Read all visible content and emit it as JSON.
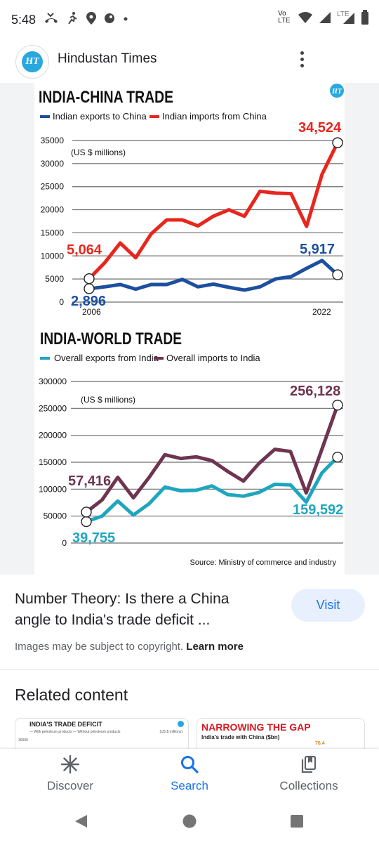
{
  "status_bar": {
    "time": "5:48",
    "left_icons": [
      "missed-call-icon",
      "activity-icon",
      "location-icon",
      "app-icon",
      "dot-icon"
    ],
    "right_icons": [
      "volte-icon",
      "wifi-icon",
      "signal-icon",
      "lte-signal-icon",
      "battery-icon"
    ],
    "volte_text": "Vo LTE",
    "lte_text": "LTE"
  },
  "app_bar": {
    "logo_text": "HT",
    "title": "Hindustan Times"
  },
  "charts": [
    {
      "title": "INDIA-CHINA TRADE",
      "unit": "(US $ millions)",
      "y_ticks": [
        "35000",
        "30000",
        "25000",
        "20000",
        "15000",
        "10000",
        "5000",
        "0"
      ],
      "x_labels": [
        "2006",
        "2022"
      ],
      "series": [
        {
          "name": "Indian exports to China",
          "color": "#1c4fa0"
        },
        {
          "name": "Indian imports from China",
          "color": "#e8261d"
        }
      ],
      "callouts": {
        "imports_start": "5,064",
        "imports_end": "34,524",
        "exports_start": "2,896",
        "exports_end": "5,917"
      }
    },
    {
      "title": "INDIA-WORLD TRADE",
      "unit": "(US $ millions)",
      "y_ticks": [
        "300000",
        "250000",
        "200000",
        "150000",
        "100000",
        "50000",
        "0"
      ],
      "series": [
        {
          "name": "Overall exports from India",
          "color": "#1fa6bf"
        },
        {
          "name": "Overall imports to India",
          "color": "#6e3450"
        }
      ],
      "callouts": {
        "imports_start": "57,416",
        "imports_end": "256,128",
        "exports_start": "39,755",
        "exports_end": "159,592"
      }
    }
  ],
  "chart_data": [
    {
      "type": "line",
      "title": "INDIA-CHINA TRADE",
      "ylabel": "(US $ millions)",
      "ylim": [
        0,
        35000
      ],
      "x": [
        2006,
        2007,
        2008,
        2009,
        2010,
        2011,
        2012,
        2013,
        2014,
        2015,
        2016,
        2017,
        2018,
        2019,
        2020,
        2021,
        2022
      ],
      "series": [
        {
          "name": "Indian exports to China",
          "values": [
            2896,
            3300,
            3800,
            2800,
            3800,
            3800,
            4900,
            3300,
            3900,
            3200,
            2600,
            3300,
            5000,
            5500,
            7300,
            9000,
            5917
          ]
        },
        {
          "name": "Indian imports from China",
          "values": [
            5064,
            8500,
            12800,
            9600,
            14800,
            17800,
            17800,
            16500,
            18600,
            20000,
            18600,
            24000,
            23600,
            23500,
            16400,
            27700,
            34524
          ]
        }
      ]
    },
    {
      "type": "line",
      "title": "INDIA-WORLD TRADE",
      "ylabel": "(US $ millions)",
      "ylim": [
        0,
        300000
      ],
      "x": [
        2006,
        2007,
        2008,
        2009,
        2010,
        2011,
        2012,
        2013,
        2014,
        2015,
        2016,
        2017,
        2018,
        2019,
        2020,
        2021,
        2022
      ],
      "series": [
        {
          "name": "Overall exports from India",
          "values": [
            39755,
            50000,
            78000,
            52000,
            73000,
            104000,
            97000,
            98000,
            106000,
            90000,
            87000,
            94000,
            109000,
            108000,
            76000,
            130000,
            159592
          ]
        },
        {
          "name": "Overall imports to India",
          "values": [
            57416,
            80000,
            122000,
            84000,
            122000,
            164000,
            157000,
            160000,
            153000,
            133000,
            115000,
            148000,
            174000,
            170000,
            93000,
            174000,
            256128
          ]
        }
      ]
    }
  ],
  "source": "Source: Ministry of commerce and industry",
  "result": {
    "title": "Number Theory: Is there a China angle to India's trade deficit ...",
    "visit_label": "Visit",
    "copyright": "Images may be subject to copyright.",
    "learn_more": "Learn more"
  },
  "related": {
    "title": "Related content",
    "thumbs": [
      {
        "title": "INDIA'S TRADE DEFICIT",
        "legend": "— With petroleum products   — Without petroleum products",
        "unit": "(US $ millions)",
        "tick": "30000"
      },
      {
        "title": "NARROWING THE GAP",
        "subtitle": "India's trade with China ($bn)",
        "value": "76.4"
      }
    ]
  },
  "bottom_nav": [
    {
      "label": "Discover",
      "icon": "asterisk-icon"
    },
    {
      "label": "Search",
      "icon": "search-icon"
    },
    {
      "label": "Collections",
      "icon": "collections-icon"
    }
  ],
  "system_nav": [
    "back-icon",
    "home-icon",
    "recents-icon"
  ]
}
